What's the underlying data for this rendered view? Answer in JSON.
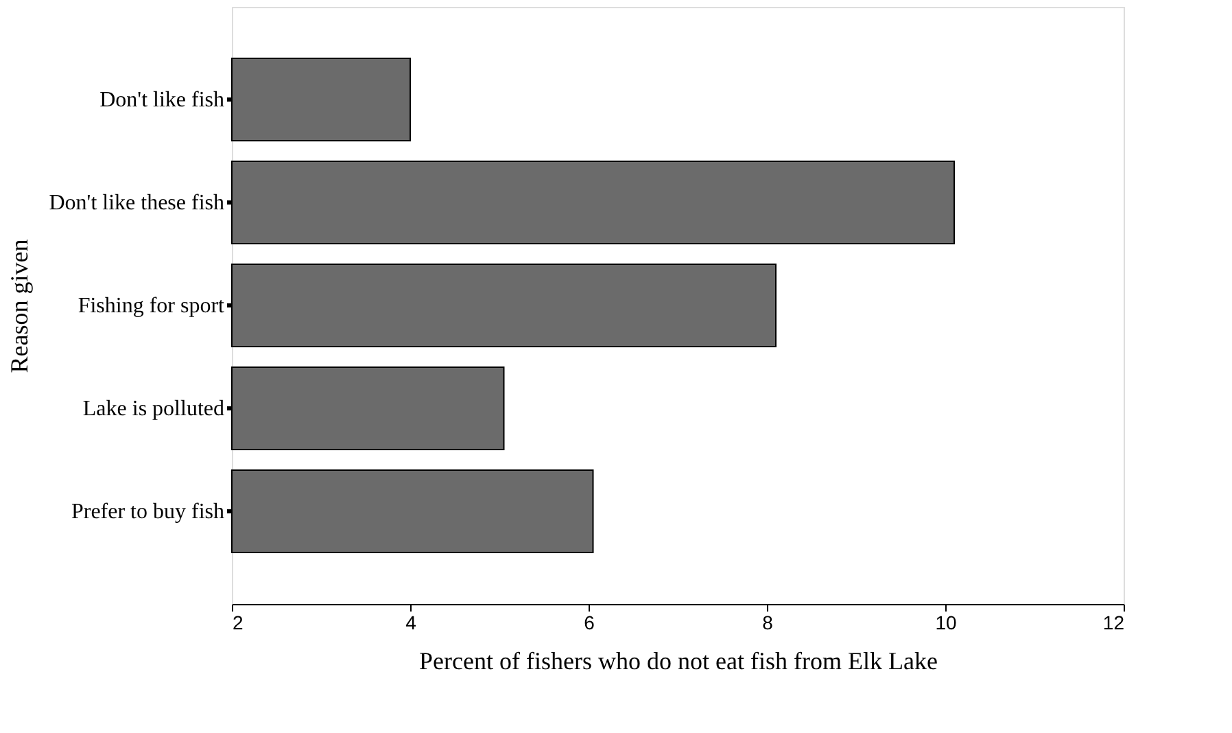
{
  "chart_data": {
    "type": "bar",
    "orientation": "horizontal",
    "categories": [
      "Don't like fish",
      "Don't like these fish",
      "Fishing for sport",
      "Lake is polluted",
      "Prefer to buy fish"
    ],
    "values": [
      4,
      10.1,
      8.1,
      5.05,
      6.05
    ],
    "color": "#6b6b6b",
    "xlabel": "Percent of fishers who do not eat fish from Elk Lake",
    "ylabel": "Reason given",
    "xlim": [
      2,
      12
    ],
    "xticks": [
      2,
      4,
      6,
      8,
      10,
      12
    ],
    "grid": false
  }
}
